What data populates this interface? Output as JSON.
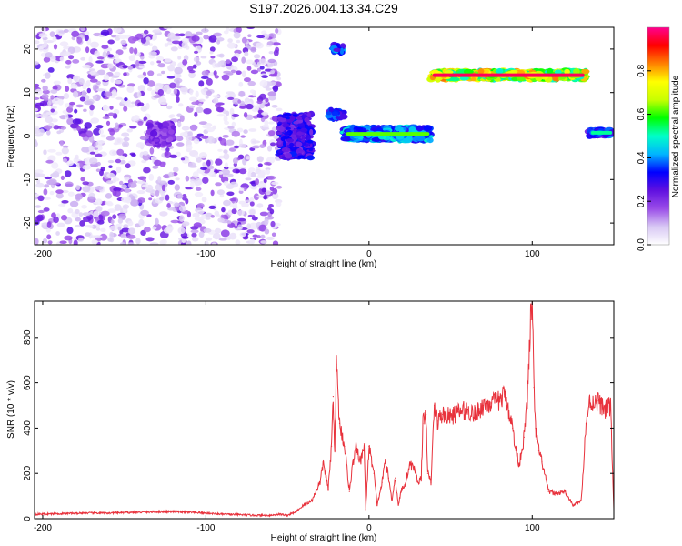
{
  "figure": {
    "title": "S197.2026.004.13.34.C29"
  },
  "chart_data": [
    {
      "type": "heatmap",
      "name": "spectrogram",
      "title": "S197.2026.004.13.34.C29",
      "xlabel": "Height of straight line (km)",
      "ylabel": "Frequency (Hz)",
      "xlim": [
        -205,
        150
      ],
      "ylim": [
        -25,
        25
      ],
      "xticks": [
        -200,
        -100,
        0,
        100
      ],
      "yticks": [
        -20,
        -10,
        0,
        10,
        20
      ],
      "colorbar": {
        "label": "Normalized spectral amplitude",
        "range": [
          0,
          1
        ],
        "ticks": [
          0.0,
          0.2,
          0.4,
          0.6,
          0.8
        ],
        "colors": [
          "#ffffff",
          "#d8c8f4",
          "#9a4ce8",
          "#6010e0",
          "#0000ff",
          "#00b4ff",
          "#00ffc8",
          "#00ff00",
          "#c8ff00",
          "#ffff00",
          "#ff8000",
          "#ff0000",
          "#ff0090"
        ]
      },
      "features": [
        {
          "name": "background speckle",
          "x_range": [
            -205,
            -55
          ],
          "y_range": [
            -25,
            25
          ],
          "amplitude": 0.15
        },
        {
          "name": "cluster",
          "x_range": [
            -135,
            -120
          ],
          "y_range": [
            -2,
            3
          ],
          "amplitude": 0.25
        },
        {
          "name": "cluster",
          "x_range": [
            -55,
            -35
          ],
          "y_range": [
            -5,
            5
          ],
          "amplitude": 0.35
        },
        {
          "name": "cluster",
          "x_range": [
            -25,
            -15
          ],
          "y_range": [
            4,
            6
          ],
          "amplitude": 0.4
        },
        {
          "name": "blob",
          "x_range": [
            -22,
            -16
          ],
          "y_range": [
            19,
            21
          ],
          "amplitude": 0.45
        },
        {
          "name": "band",
          "x_range": [
            -15,
            38
          ],
          "y_range": [
            -1,
            2
          ],
          "amplitude": 0.5
        },
        {
          "name": "band",
          "x_range": [
            38,
            133
          ],
          "y_range": [
            13,
            15
          ],
          "amplitude": 0.85
        },
        {
          "name": "band",
          "x_range": [
            135,
            150
          ],
          "y_range": [
            0,
            1.5
          ],
          "amplitude": 0.4
        }
      ]
    },
    {
      "type": "line",
      "name": "snr",
      "xlabel": "Height of straight line (km)",
      "ylabel": "SNR (10 * v/v)",
      "xlim": [
        -205,
        150
      ],
      "ylim": [
        0,
        960
      ],
      "xticks": [
        -200,
        -100,
        0,
        100
      ],
      "yticks": [
        0,
        200,
        400,
        600,
        800
      ],
      "color": "#e8323c",
      "series": [
        {
          "name": "SNR",
          "x": [
            -205,
            -190,
            -175,
            -160,
            -145,
            -130,
            -120,
            -110,
            -100,
            -90,
            -80,
            -70,
            -60,
            -55,
            -50,
            -45,
            -40,
            -35,
            -32,
            -30,
            -28,
            -25,
            -23,
            -22,
            -21,
            -20,
            -18,
            -15,
            -12,
            -10,
            -8,
            -5,
            -3,
            -2,
            0,
            3,
            5,
            8,
            10,
            12,
            14,
            16,
            18,
            20,
            22,
            25,
            28,
            30,
            32,
            33,
            34,
            35,
            36,
            38,
            40,
            42,
            45,
            50,
            55,
            60,
            65,
            70,
            75,
            80,
            83,
            85,
            88,
            90,
            92,
            95,
            97,
            99,
            100,
            101,
            102,
            104,
            106,
            110,
            115,
            120,
            125,
            130,
            133,
            135,
            140,
            145,
            148,
            150
          ],
          "y": [
            20,
            22,
            25,
            25,
            28,
            30,
            32,
            28,
            25,
            20,
            18,
            15,
            15,
            20,
            15,
            30,
            60,
            80,
            130,
            160,
            250,
            130,
            320,
            540,
            300,
            680,
            420,
            320,
            120,
            240,
            310,
            250,
            330,
            40,
            320,
            200,
            60,
            160,
            260,
            180,
            80,
            180,
            60,
            130,
            150,
            240,
            220,
            160,
            180,
            420,
            440,
            460,
            200,
            160,
            500,
            430,
            460,
            450,
            470,
            480,
            460,
            500,
            510,
            520,
            550,
            500,
            400,
            300,
            240,
            360,
            520,
            880,
            960,
            580,
            400,
            300,
            250,
            120,
            110,
            120,
            60,
            80,
            420,
            510,
            520,
            480,
            500,
            40
          ]
        }
      ]
    }
  ]
}
